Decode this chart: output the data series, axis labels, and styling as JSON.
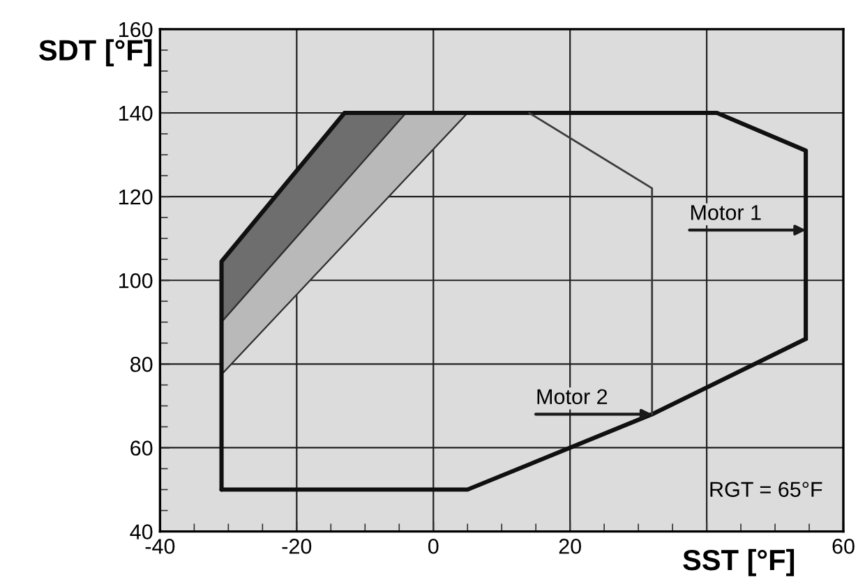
{
  "chart_data": {
    "type": "line",
    "xlabel": "SST [°F]",
    "ylabel": "SDT [°F]",
    "xlim": [
      -40,
      60
    ],
    "ylim": [
      40,
      160
    ],
    "xticks": [
      -40,
      -20,
      0,
      20,
      {
        "value": 40,
        "label": null
      },
      60
    ],
    "yticks": [
      40,
      60,
      80,
      100,
      120,
      140,
      160
    ],
    "grid": true,
    "marker": "none",
    "line_style": "solid",
    "series": [
      {
        "type": "area",
        "color": "#6e6e6e",
        "x": [
          -31,
          -13,
          -4,
          -31
        ],
        "values": [
          104.5,
          140,
          140,
          90
        ]
      },
      {
        "type": "area",
        "color": "#b9b9b9",
        "x": [
          -31,
          -4,
          5,
          -31
        ],
        "values": [
          90,
          140,
          140,
          77.5
        ]
      },
      {
        "color": "#101010",
        "x": [
          -31,
          -31,
          -13,
          41.5,
          54.5,
          54.5
        ],
        "values": [
          50,
          104.5,
          140,
          140,
          131,
          86
        ]
      },
      {
        "color": "#101010",
        "x": [
          -31,
          5,
          32,
          54.5
        ],
        "values": [
          50,
          50,
          68,
          86
        ]
      },
      {
        "color": "#3c3c3c",
        "x": [
          14,
          32,
          32
        ],
        "values": [
          140,
          122,
          68
        ]
      }
    ],
    "annotations": [
      {
        "text": "Motor 1",
        "x": 54.5,
        "y": 112
      },
      {
        "text": "Motor 2",
        "x": 32,
        "y": 68
      },
      "RGT = 65°F"
    ]
  }
}
